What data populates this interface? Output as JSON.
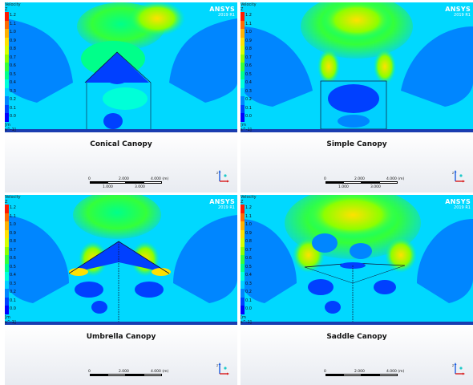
{
  "legend": {
    "title": "Velocity",
    "title2": "Z",
    "unit": "[m s^-1]",
    "levels": [
      "1.2",
      "1.1",
      "1.0",
      "0.9",
      "0.8",
      "0.7",
      "0.6",
      "0.5",
      "0.4",
      "0.3",
      "0.2",
      "0.1",
      "0.0"
    ],
    "colors": [
      "#ff1a00",
      "#ff6a00",
      "#ffb000",
      "#ffe100",
      "#d6ff00",
      "#8cff00",
      "#34ff3a",
      "#00ff8a",
      "#00ffd8",
      "#00d0ff",
      "#0086ff",
      "#0040ff",
      "#0000ff"
    ]
  },
  "brand": {
    "name": "ANSYS",
    "version": "2019 R1"
  },
  "scale": {
    "ticks": [
      "0",
      "2.000",
      "4.000 (m)"
    ],
    "sub_ticks": [
      "1.000",
      "3.000"
    ]
  },
  "triad": {
    "axes": [
      "x",
      "y",
      "z"
    ]
  },
  "panels": [
    {
      "caption": "Conical Canopy"
    },
    {
      "caption": "Simple Canopy"
    },
    {
      "caption": "Umbrella Canopy"
    },
    {
      "caption": "Saddle Canopy"
    }
  ]
}
